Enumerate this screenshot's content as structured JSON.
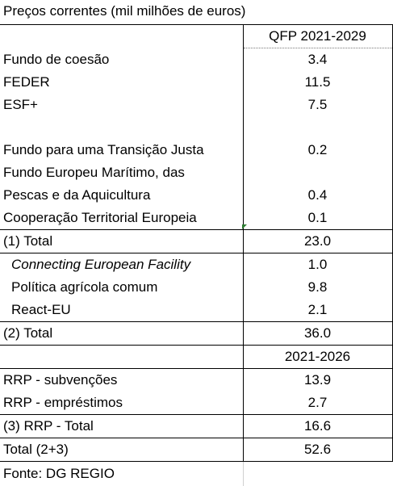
{
  "title": "Preços correntes (mil milhões de euros)",
  "header_period_1": "QFP 2021-2029",
  "rows_block_1": [
    {
      "label": "Fundo de coesão",
      "value": "3.4"
    },
    {
      "label": "FEDER",
      "value": "11.5"
    },
    {
      "label": "ESF+",
      "value": "7.5"
    }
  ],
  "rows_block_2": [
    {
      "label": "Fundo para uma Transição Justa",
      "value": "0.2"
    },
    {
      "label": "Fundo Europeu Marítimo, das",
      "value": ""
    },
    {
      "label": "Pescas e da Aquicultura",
      "value": "0.4"
    },
    {
      "label": "Cooperação Territorial Europeia",
      "value": "0.1"
    }
  ],
  "total_1": {
    "label": "(1) Total",
    "value": "23.0"
  },
  "rows_block_3": [
    {
      "label": "Connecting European Facility",
      "value": "1.0"
    },
    {
      "label": "Política agrícola comum",
      "value": "9.8"
    },
    {
      "label": "React-EU",
      "value": "2.1"
    }
  ],
  "total_2": {
    "label": "(2) Total",
    "value": "36.0"
  },
  "header_period_2": "2021-2026",
  "rows_block_4": [
    {
      "label": "RRP - subvenções",
      "value": "13.9"
    },
    {
      "label": "RRP - empréstimos",
      "value": "2.7"
    }
  ],
  "total_3": {
    "label": "(3) RRP - Total",
    "value": "16.6"
  },
  "grand_total": {
    "label": "Total (2+3)",
    "value": "52.6"
  },
  "source": "Fonte: DG REGIO"
}
